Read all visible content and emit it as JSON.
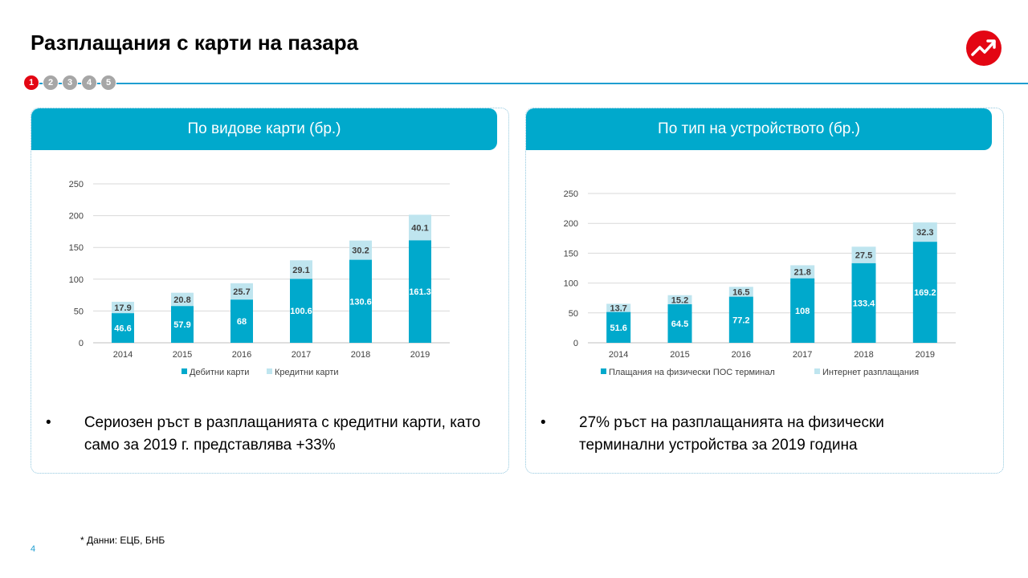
{
  "title": "Разплащания с карти на пазара",
  "steps": [
    "1",
    "2",
    "3",
    "4",
    "5"
  ],
  "active_step": 0,
  "colors": {
    "accent_blue": "#00a9cc",
    "light_blue": "#bfe5ef",
    "brand_red": "#e30613",
    "rule_blue": "#1f9ed1"
  },
  "logo_icon": "trend-up-arrow-icon",
  "panels": [
    {
      "header": "По видове карти (бр.)",
      "bullet": "Сериозен ръст в разплащанията  с кредитни карти, като само за 2019 г. представлява  +33%"
    },
    {
      "header": "По тип на устройството (бр.)",
      "bullet": "27% ръст на разплащанията  на физически терминални  устройства за 2019 година"
    }
  ],
  "chart_data": [
    {
      "type": "bar",
      "stacked": true,
      "categories": [
        "2014",
        "2015",
        "2016",
        "2017",
        "2018",
        "2019"
      ],
      "series": [
        {
          "name": "Дебитни карти",
          "values": [
            46.6,
            57.9,
            68,
            100.6,
            130.6,
            161.3
          ],
          "color": "#00a9cc"
        },
        {
          "name": "Кредитни карти",
          "values": [
            17.9,
            20.8,
            25.7,
            29.1,
            30.2,
            40.1
          ],
          "color": "#bfe5ef"
        }
      ],
      "y_ticks": [
        "0",
        "50",
        "100",
        "150",
        "200",
        "250"
      ],
      "ylim": [
        0,
        250
      ],
      "grid": true,
      "legend": "bottom"
    },
    {
      "type": "bar",
      "stacked": true,
      "categories": [
        "2014",
        "2015",
        "2016",
        "2017",
        "2018",
        "2019"
      ],
      "series": [
        {
          "name": "Плащания на физически ПОС терминал",
          "values": [
            51.6,
            64.5,
            77.2,
            108,
            133.4,
            169.2
          ],
          "color": "#00a9cc"
        },
        {
          "name": "Интернет разплащания",
          "values": [
            13.7,
            15.2,
            16.5,
            21.8,
            27.5,
            32.3
          ],
          "color": "#bfe5ef"
        }
      ],
      "y_ticks": [
        "0",
        "50",
        "100",
        "150",
        "200",
        "250"
      ],
      "ylim": [
        0,
        250
      ],
      "grid": true,
      "legend": "bottom"
    }
  ],
  "footnote": "* Данни: ЕЦБ, БНБ",
  "page_number": "4"
}
